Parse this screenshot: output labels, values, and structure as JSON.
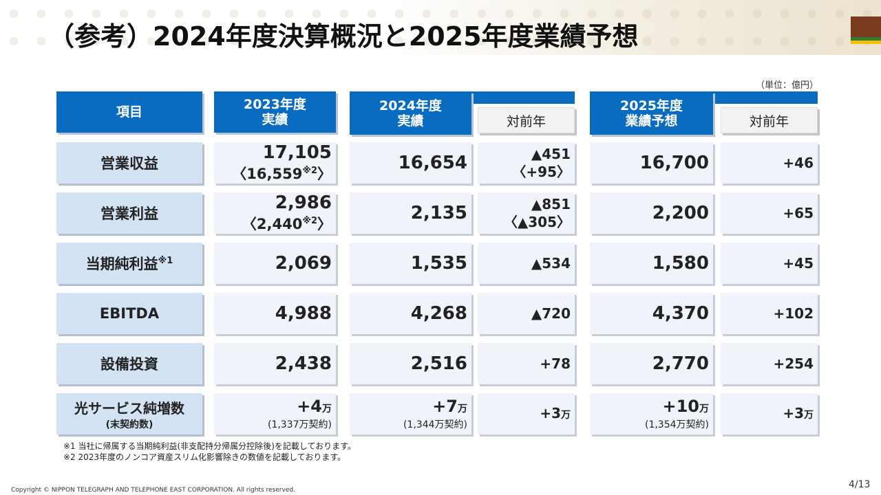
{
  "title": "（参考）2024年度決算概況と2025年度業績予想",
  "unit": "（単位：億円）",
  "headers": {
    "item": "項目",
    "fy2023_line1": "2023年度",
    "fy2023_line2": "実績",
    "fy2024_line1": "2024年度",
    "fy2024_line2": "実績",
    "yoy_2024": "対前年",
    "fy2025_line1": "2025年度",
    "fy2025_line2": "業績予想",
    "yoy_2025": "対前年"
  },
  "rows": [
    {
      "label": "営業収益",
      "fy2023": "17,105",
      "fy2023_sub": "〈16,559",
      "fy2023_sub_mark": "※2",
      "fy2023_sub_close": "〉",
      "fy2024": "16,654",
      "yoy2024": "▲451",
      "yoy2024_sub": "〈+95〉",
      "fy2025": "16,700",
      "yoy2025": "+46"
    },
    {
      "label": "営業利益",
      "fy2023": "2,986",
      "fy2023_sub": "〈2,440",
      "fy2023_sub_mark": "※2",
      "fy2023_sub_close": "〉",
      "fy2024": "2,135",
      "yoy2024": "▲851",
      "yoy2024_sub": "〈▲305〉",
      "fy2025": "2,200",
      "yoy2025": "+65"
    },
    {
      "label": "当期純利益",
      "label_mark": "※1",
      "fy2023": "2,069",
      "fy2024": "1,535",
      "yoy2024": "▲534",
      "fy2025": "1,580",
      "yoy2025": "+45"
    },
    {
      "label": "EBITDA",
      "fy2023": "4,988",
      "fy2024": "4,268",
      "yoy2024": "▲720",
      "fy2025": "4,370",
      "yoy2025": "+102"
    },
    {
      "label": "設備投資",
      "fy2023": "2,438",
      "fy2024": "2,516",
      "yoy2024": "+78",
      "fy2025": "2,770",
      "yoy2025": "+254"
    },
    {
      "label": "光サービス純増数",
      "label_sub": "(末契約数)",
      "fy2023": "+4",
      "fy2023_unit": "万",
      "fy2023_note": "(1,337万契約)",
      "fy2024": "+7",
      "fy2024_unit": "万",
      "fy2024_note": "(1,344万契約)",
      "yoy2024": "+3",
      "yoy2024_unit": "万",
      "fy2025": "+10",
      "fy2025_unit": "万",
      "fy2025_note": "(1,354万契約)",
      "yoy2025": "+3",
      "yoy2025_unit": "万"
    }
  ],
  "footnotes": [
    "※1 当社に帰属する当期純利益(非支配持分帰属分控除後)を記載しております。",
    "※2 2023年度のノンコア資産スリム化影響除きの数値を記載しております。"
  ],
  "copyright": "Copyright © NIPPON TELEGRAPH AND TELEPHONE EAST CORPORATION. All rights reserved.",
  "page": "4/13",
  "colors": {
    "header_blue": "#0a6cc1",
    "label_blue": "#d3e3f4",
    "cell_bg": "#f0f4fa"
  }
}
